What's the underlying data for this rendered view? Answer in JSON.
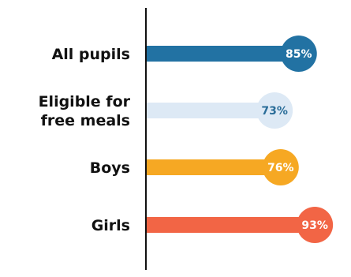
{
  "chart_data": {
    "type": "bar",
    "orientation": "horizontal",
    "categories": [
      "All pupils",
      "Eligible for free meals",
      "Boys",
      "Girls"
    ],
    "category_lines": [
      [
        "All pupils"
      ],
      [
        "Eligible for",
        "free meals"
      ],
      [
        "Boys"
      ],
      [
        "Girls"
      ]
    ],
    "values": [
      85,
      73,
      76,
      93
    ],
    "value_labels": [
      "85%",
      "73%",
      "76%",
      "93%"
    ],
    "unit": "%",
    "xlim": [
      0,
      100
    ],
    "grid": false,
    "legend": "none",
    "colors": {
      "bars": [
        "#2272a3",
        "#dde9f5",
        "#f6a823",
        "#f26545"
      ],
      "value_text": [
        "#ffffff",
        "#2a6d99",
        "#ffffff",
        "#ffffff"
      ],
      "axis": "#111111"
    }
  }
}
